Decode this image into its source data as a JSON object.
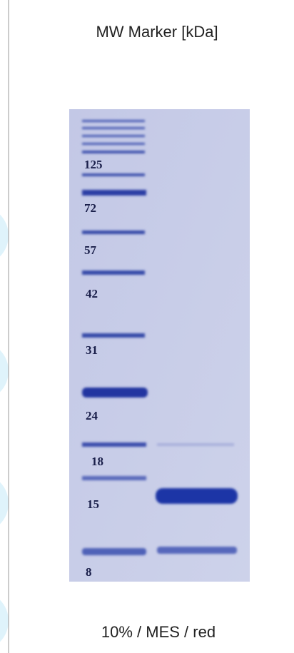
{
  "header": {
    "title": "MW Marker [kDa]"
  },
  "gel": {
    "marker_labels": [
      "125",
      "72",
      "57",
      "42",
      "31",
      "24",
      "18",
      "15",
      "8"
    ]
  },
  "caption": "10% / MES / red"
}
